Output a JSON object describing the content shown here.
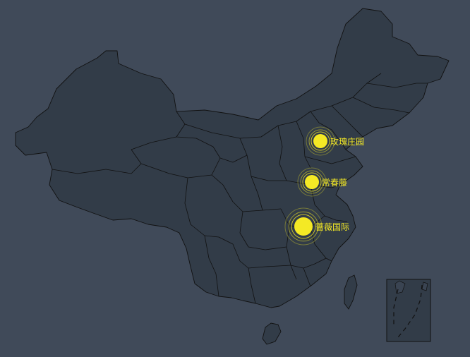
{
  "map": {
    "background_color": "#404a59",
    "land_color": "#323c48",
    "border_color": "#111111",
    "marker_color": "#f4e925"
  },
  "markers": [
    {
      "name": "玫瑰庄园",
      "value": 2
    },
    {
      "name": "常春藤",
      "value": 2
    },
    {
      "name": "蔷薇国际",
      "value": 3
    }
  ]
}
